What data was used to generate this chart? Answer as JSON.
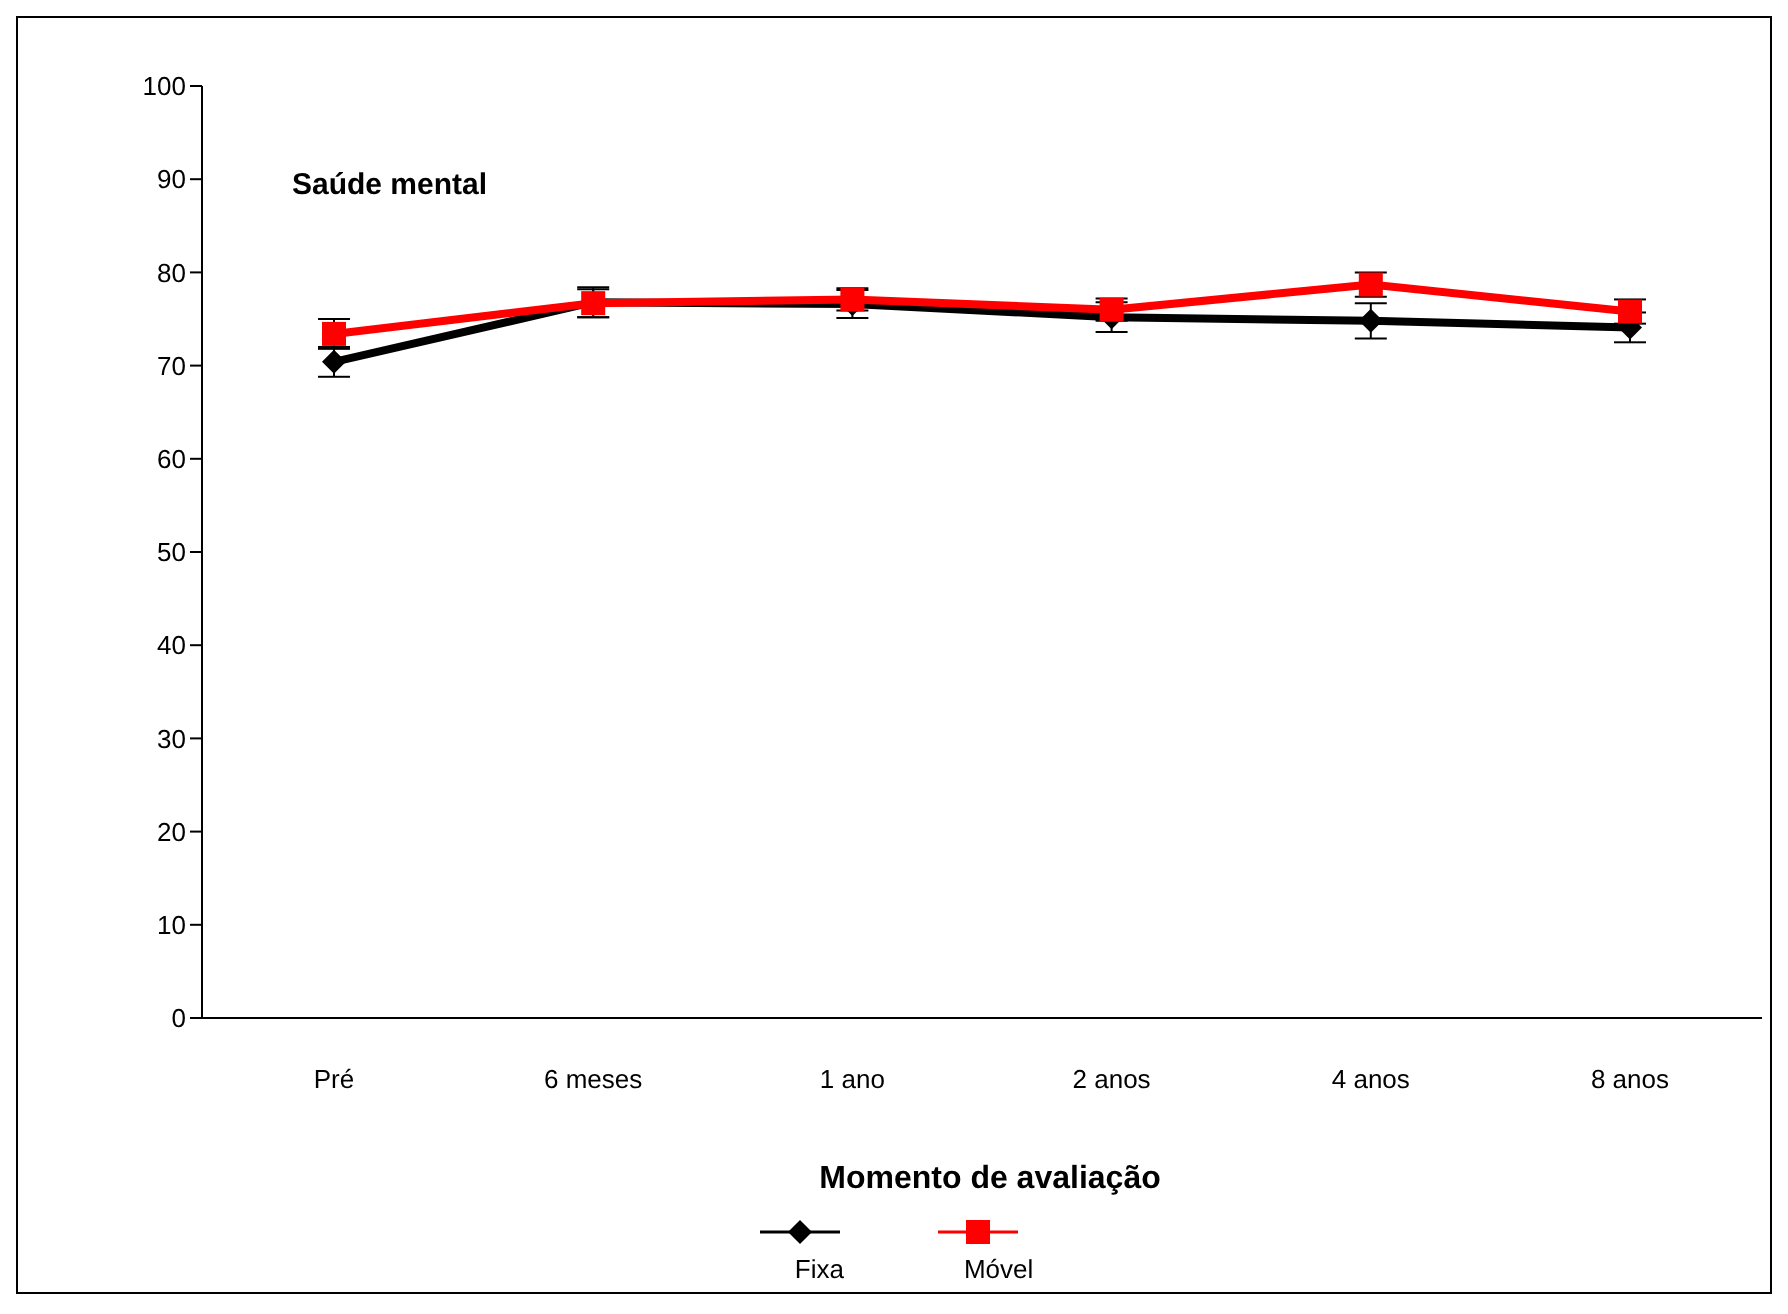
{
  "chart_data": {
    "type": "line",
    "title": "Saúde mental",
    "xlabel": "Momento de avaliação",
    "categories": [
      "Pré",
      "6 meses",
      "1 ano",
      "2 anos",
      "4 anos",
      "8 anos"
    ],
    "series": [
      {
        "name": "Fixa",
        "color": "#000000",
        "marker": "diamond",
        "values": [
          70.4,
          76.8,
          76.6,
          75.2,
          74.8,
          74.1
        ],
        "errors": [
          1.6,
          1.6,
          1.5,
          1.6,
          1.9,
          1.6
        ]
      },
      {
        "name": "Móvel",
        "color": "#ff0000",
        "marker": "square",
        "values": [
          73.4,
          76.7,
          77.1,
          76.0,
          78.7,
          75.8
        ],
        "errors": [
          1.6,
          1.5,
          1.2,
          1.2,
          1.3,
          1.3
        ]
      }
    ],
    "ylim": [
      0,
      100
    ],
    "yticks": [
      0,
      10,
      20,
      30,
      40,
      50,
      60,
      70,
      80,
      90,
      100
    ],
    "grid": false,
    "legend": "bottom"
  }
}
